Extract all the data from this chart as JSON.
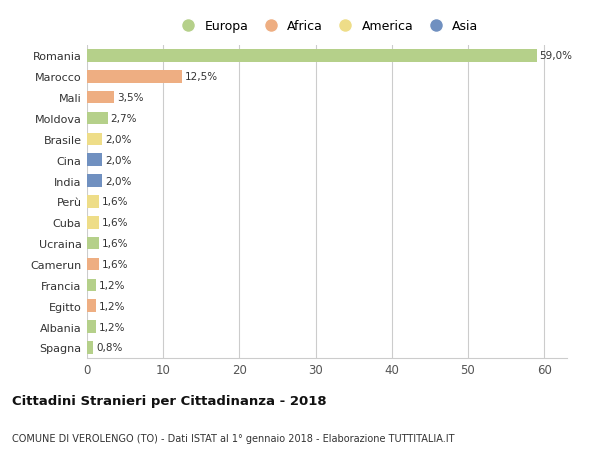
{
  "categories": [
    "Romania",
    "Marocco",
    "Mali",
    "Moldova",
    "Brasile",
    "Cina",
    "India",
    "Perù",
    "Cuba",
    "Ucraina",
    "Camerun",
    "Francia",
    "Egitto",
    "Albania",
    "Spagna"
  ],
  "values": [
    59.0,
    12.5,
    3.5,
    2.7,
    2.0,
    2.0,
    2.0,
    1.6,
    1.6,
    1.6,
    1.6,
    1.2,
    1.2,
    1.2,
    0.8
  ],
  "labels": [
    "59,0%",
    "12,5%",
    "3,5%",
    "2,7%",
    "2,0%",
    "2,0%",
    "2,0%",
    "1,6%",
    "1,6%",
    "1,6%",
    "1,6%",
    "1,2%",
    "1,2%",
    "1,2%",
    "0,8%"
  ],
  "colors": [
    "#b5d08a",
    "#eeae82",
    "#eeae82",
    "#b5d08a",
    "#eedd88",
    "#7090c0",
    "#7090c0",
    "#eedd88",
    "#eedd88",
    "#b5d08a",
    "#eeae82",
    "#b5d08a",
    "#eeae82",
    "#b5d08a",
    "#b5d08a"
  ],
  "legend_labels": [
    "Europa",
    "Africa",
    "America",
    "Asia"
  ],
  "legend_colors": [
    "#b5d08a",
    "#eeae82",
    "#eedd88",
    "#7090c0"
  ],
  "title": "Cittadini Stranieri per Cittadinanza - 2018",
  "subtitle": "COMUNE DI VEROLENGO (TO) - Dati ISTAT al 1° gennaio 2018 - Elaborazione TUTTITALIA.IT",
  "xlim": [
    0,
    63
  ],
  "xticks": [
    0,
    10,
    20,
    30,
    40,
    50,
    60
  ],
  "background_color": "#ffffff",
  "grid_color": "#cccccc"
}
